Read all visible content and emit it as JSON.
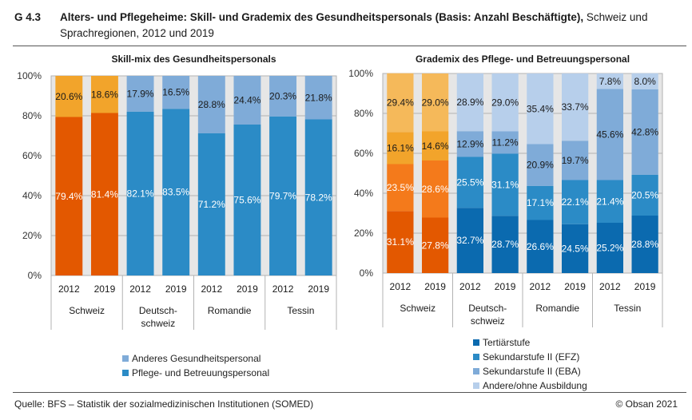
{
  "header": {
    "figure_number": "G 4.3",
    "title_bold": "Alters- und Pflegeheime: Skill- und Grademix des Gesundheitspersonals (Basis: Anzahl Beschäftigte),",
    "title_rest": " Schweiz und Sprachregionen, 2012 und 2019"
  },
  "footer": {
    "source": "Quelle: BFS – Statistik der sozialmedizinischen Institutionen (SOMED)",
    "copyright": "© Obsan 2021"
  },
  "chart_data": [
    {
      "type": "bar",
      "stacked": true,
      "title": "Skill-mix des Gesundheitspersonals",
      "ylim": [
        0,
        100
      ],
      "yticks": [
        "0%",
        "20%",
        "40%",
        "60%",
        "80%",
        "100%"
      ],
      "grid": true,
      "groups": [
        "Schweiz",
        "Deutsch-\nschweiz",
        "Romandie",
        "Tessin"
      ],
      "categories": [
        "2012",
        "2019",
        "2012",
        "2019",
        "2012",
        "2019",
        "2012",
        "2019"
      ],
      "series": [
        {
          "name": "Pflege- und Betreuungspersonal",
          "values": [
            79.4,
            81.4,
            82.1,
            83.5,
            71.2,
            75.6,
            79.7,
            78.2
          ],
          "labels": [
            "79.4%",
            "81.4%",
            "82.1%",
            "83.5%",
            "71.2%",
            "75.6%",
            "79.7%",
            "78.2%"
          ],
          "color": "#2b8bc6",
          "highlight_color": "#e35800",
          "label_color": "#ffffff"
        },
        {
          "name": "Anderes Gesundheitspersonal",
          "values": [
            20.6,
            18.6,
            17.9,
            16.5,
            28.8,
            24.4,
            20.3,
            21.8
          ],
          "labels": [
            "20.6%",
            "18.6%",
            "17.9%",
            "16.5%",
            "28.8%",
            "24.4%",
            "20.3%",
            "21.8%"
          ],
          "color": "#7fabd8",
          "highlight_color": "#f2a42b",
          "label_color": "#1a1a1a"
        }
      ],
      "legend": [
        {
          "name": "Anderes Gesundheitspersonal",
          "color": "#7fabd8"
        },
        {
          "name": "Pflege- und Betreuungspersonal",
          "color": "#2b8bc6"
        }
      ],
      "legend_position": "bottom"
    },
    {
      "type": "bar",
      "stacked": true,
      "title": "Grademix des Pflege- und Betreuungspersonal",
      "ylim": [
        0,
        100
      ],
      "yticks": [
        "0%",
        "20%",
        "40%",
        "60%",
        "80%",
        "100%"
      ],
      "grid": true,
      "groups": [
        "Schweiz",
        "Deutsch-\nschweiz",
        "Romandie",
        "Tessin"
      ],
      "categories": [
        "2012",
        "2019",
        "2012",
        "2019",
        "2012",
        "2019",
        "2012",
        "2019"
      ],
      "series": [
        {
          "name": "Tertiärstufe",
          "values": [
            31.1,
            27.8,
            32.7,
            28.7,
            26.6,
            24.5,
            25.2,
            28.8
          ],
          "labels": [
            "31.1%",
            "27.8%",
            "32.7%",
            "28.7%",
            "26.6%",
            "24.5%",
            "25.2%",
            "28.8%"
          ],
          "color": "#0b6aaf",
          "highlight_color": "#e35800",
          "label_color": "#ffffff"
        },
        {
          "name": "Sekundarstufe II (EFZ)",
          "values": [
            23.5,
            28.6,
            25.5,
            31.1,
            17.1,
            22.1,
            21.4,
            20.5
          ],
          "labels": [
            "23.5%",
            "28.6%",
            "25.5%",
            "31.1%",
            "17.1%",
            "22.1%",
            "21.4%",
            "20.5%"
          ],
          "color": "#2b8bc6",
          "highlight_color": "#f47a1b",
          "label_color": "#ffffff"
        },
        {
          "name": "Sekundarstufe II (EBA)",
          "values": [
            16.1,
            14.6,
            12.9,
            11.2,
            20.9,
            19.7,
            45.6,
            42.8
          ],
          "labels": [
            "16.1%",
            "14.6%",
            "12.9%",
            "11.2%",
            "20.9%",
            "19.7%",
            "45.6%",
            "42.8%"
          ],
          "color": "#7fabd8",
          "highlight_color": "#f2a42b",
          "label_color": "#1a1a1a"
        },
        {
          "name": "Andere/ohne Ausbildung",
          "values": [
            29.4,
            29.0,
            28.9,
            29.0,
            35.4,
            33.7,
            7.8,
            8.0
          ],
          "labels": [
            "29.4%",
            "29.0%",
            "28.9%",
            "29.0%",
            "35.4%",
            "33.7%",
            "7.8%",
            "8.0%"
          ],
          "color": "#b7cfeb",
          "highlight_color": "#f5b95a",
          "label_color": "#1a1a1a"
        }
      ],
      "legend": [
        {
          "name": "Tertiärstufe",
          "color": "#0b6aaf"
        },
        {
          "name": "Sekundarstufe II (EFZ)",
          "color": "#2b8bc6"
        },
        {
          "name": "Sekundarstufe II (EBA)",
          "color": "#7fabd8"
        },
        {
          "name": "Andere/ohne Ausbildung",
          "color": "#b7cfeb"
        }
      ],
      "legend_position": "bottom"
    }
  ]
}
